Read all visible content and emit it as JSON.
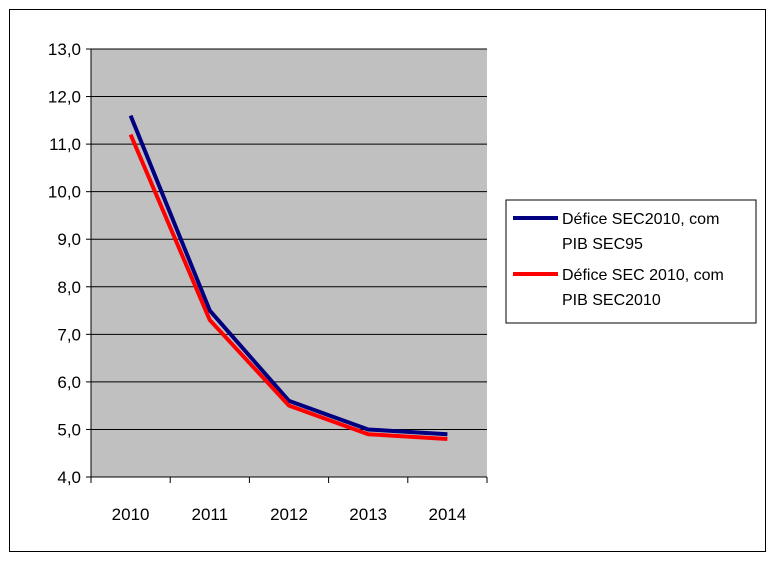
{
  "chart_data": {
    "type": "line",
    "title": "",
    "xlabel": "",
    "ylabel": "",
    "categories": [
      "2010",
      "2011",
      "2012",
      "2013",
      "2014"
    ],
    "ylim": [
      4.0,
      13.0
    ],
    "ytick_step": 1.0,
    "ytick_labels": [
      "4,0",
      "5,0",
      "6,0",
      "7,0",
      "8,0",
      "9,0",
      "10,0",
      "11,0",
      "12,0",
      "13,0"
    ],
    "grid": "horizontal",
    "legend_position": "right",
    "plot_background": "#c0c0c0",
    "series": [
      {
        "name": "Défice SEC2010, com PIB SEC95",
        "legend_lines": [
          "Défice SEC2010, com",
          "PIB SEC95"
        ],
        "color": "#000080",
        "values": [
          11.6,
          7.5,
          5.6,
          5.0,
          4.9
        ]
      },
      {
        "name": "Défice SEC 2010, com PIB SEC2010",
        "legend_lines": [
          "Défice SEC 2010, com",
          "PIB SEC2010"
        ],
        "color": "#ff0000",
        "values": [
          11.2,
          7.3,
          5.5,
          4.9,
          4.8
        ]
      }
    ]
  }
}
